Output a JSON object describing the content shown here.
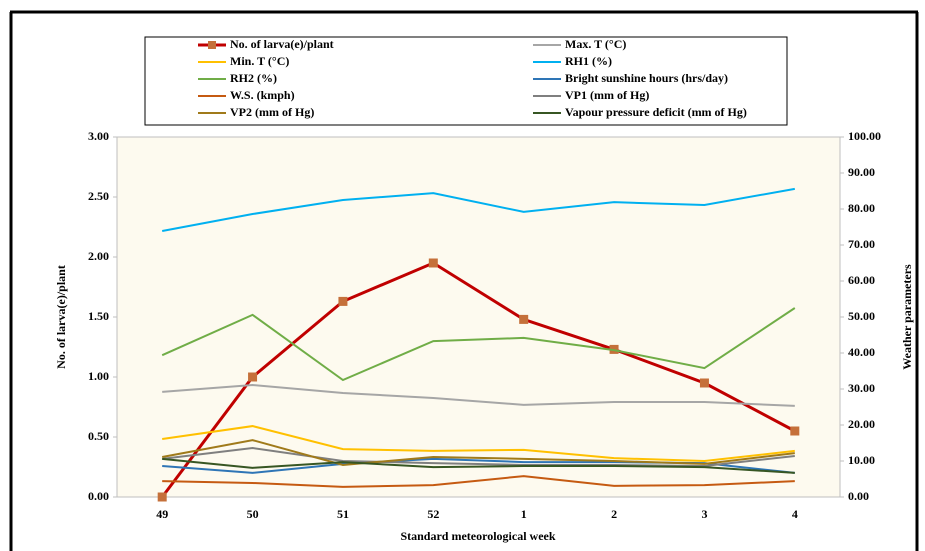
{
  "chart_data": {
    "type": "line",
    "x_label": "Standard meteorological week",
    "y_label": "No. of  larva(e)/plant",
    "y2_label": "Weather parameters",
    "categories": [
      "49",
      "50",
      "51",
      "52",
      "1",
      "2",
      "3",
      "4"
    ],
    "ylim": [
      0,
      3
    ],
    "yticks": [
      {
        "value": 0,
        "label": "0.00"
      },
      {
        "value": 0.5,
        "label": "0.50"
      },
      {
        "value": 1,
        "label": "1.00"
      },
      {
        "value": 1.5,
        "label": "1.50"
      },
      {
        "value": 2,
        "label": "2.00"
      },
      {
        "value": 2.5,
        "label": "2.50"
      },
      {
        "value": 3,
        "label": "3.00"
      }
    ],
    "y2lim": [
      0,
      100
    ],
    "y2ticks": [
      {
        "value": 0,
        "label": "0.00"
      },
      {
        "value": 10,
        "label": "10.00"
      },
      {
        "value": 20,
        "label": "20.00"
      },
      {
        "value": 30,
        "label": "30.00"
      },
      {
        "value": 40,
        "label": "40.00"
      },
      {
        "value": 50,
        "label": "50.00"
      },
      {
        "value": 60,
        "label": "60.00"
      },
      {
        "value": 70,
        "label": "70.00"
      },
      {
        "value": 80,
        "label": "80.00"
      },
      {
        "value": 90,
        "label": "90.00"
      },
      {
        "value": 100,
        "label": "100.00"
      }
    ],
    "grid": false,
    "legend_position": "top",
    "plot_background": "#fdfaef",
    "series": [
      {
        "name": "No. of larva(e)/plant",
        "color": "#c00000",
        "marker": "square",
        "marker_color": "#c5703a",
        "values": [
          0,
          1.0,
          1.63,
          1.95,
          1.48,
          1.23,
          0.95,
          0.55
        ]
      },
      {
        "name": "Max. T (°C)",
        "color": "#a6a6a6",
        "axis": "y2",
        "values": [
          29.2,
          31.1,
          28.9,
          27.5,
          25.6,
          26.4,
          26.4,
          25.3
        ]
      },
      {
        "name": "Min. T (°C)",
        "color": "#ffc000",
        "axis": "y2",
        "values": [
          16.1,
          19.7,
          13.3,
          12.8,
          13.1,
          10.8,
          10.0,
          12.8
        ]
      },
      {
        "name": "RH1 (%)",
        "color": "#00b0f0",
        "axis": "y2",
        "values": [
          73.9,
          78.6,
          82.5,
          84.4,
          79.2,
          81.9,
          81.1,
          85.6
        ]
      },
      {
        "name": "RH2 (%)",
        "color": "#70ad47",
        "axis": "y2",
        "values": [
          39.4,
          50.6,
          32.5,
          43.3,
          44.2,
          40.8,
          35.8,
          52.5
        ]
      },
      {
        "name": "Bright sunshine hours (hrs/day)",
        "color": "#2e75b6",
        "axis": "y2",
        "values": [
          8.6,
          6.7,
          9.2,
          10.6,
          9.7,
          9.7,
          9.4,
          6.7
        ]
      },
      {
        "name": "W.S. (kmph)",
        "color": "#c55a11",
        "axis": "y2",
        "values": [
          4.4,
          3.9,
          2.8,
          3.3,
          5.8,
          3.1,
          3.3,
          4.4
        ]
      },
      {
        "name": "VP1 (mm of Hg)",
        "color": "#7f7f7f",
        "axis": "y2",
        "values": [
          10.6,
          13.6,
          10.0,
          9.4,
          8.9,
          8.9,
          8.6,
          11.4
        ]
      },
      {
        "name": "VP2 (mm of Hg)",
        "color": "#a07a1a",
        "axis": "y2",
        "values": [
          11.1,
          15.8,
          8.9,
          11.1,
          10.6,
          10.0,
          9.2,
          12.2
        ]
      },
      {
        "name": "Vapour pressure deficit (mm of Hg)",
        "color": "#375623",
        "axis": "y2",
        "values": [
          10.6,
          8.1,
          9.7,
          8.3,
          8.6,
          8.6,
          8.3,
          6.7
        ]
      }
    ]
  }
}
